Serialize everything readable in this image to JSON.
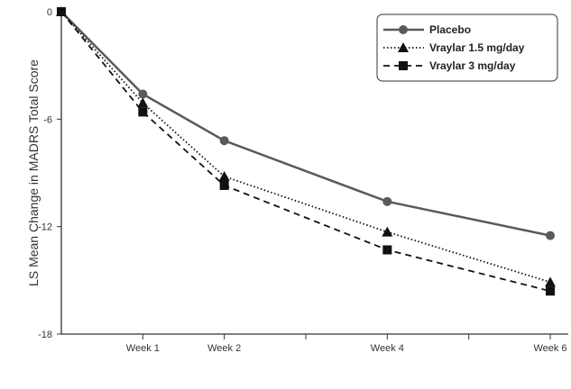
{
  "chart_data": {
    "type": "line",
    "title": "",
    "xlabel": "",
    "ylabel": "LS Mean Change in MADRS Total Score",
    "x": [
      0,
      1,
      2,
      4,
      6
    ],
    "xlim": [
      0,
      6
    ],
    "ylim": [
      -18,
      0
    ],
    "yticks": [
      0,
      -6,
      -12,
      -18
    ],
    "ytick_labels": [
      "0",
      "-6",
      "-12",
      "-18"
    ],
    "xticks": [
      1,
      2,
      3,
      4,
      5,
      6
    ],
    "xtick_labels": [
      {
        "x": 1,
        "label": "Week 1"
      },
      {
        "x": 2,
        "label": "Week 2"
      },
      {
        "x": 4,
        "label": "Week 4"
      },
      {
        "x": 6,
        "label": "Week 6"
      }
    ],
    "grid": false,
    "legend_position": "top-right",
    "series": [
      {
        "name": "Placebo",
        "values": [
          0,
          -4.6,
          -7.2,
          -10.6,
          -12.5
        ],
        "color": "#5a5a5a",
        "style": "solid",
        "marker": "circle"
      },
      {
        "name": "Vraylar 1.5 mg/day",
        "values": [
          0,
          -5.1,
          -9.2,
          -12.3,
          -15.1
        ],
        "color": "#111111",
        "style": "dotted",
        "marker": "triangle"
      },
      {
        "name": "Vraylar 3 mg/day",
        "values": [
          0,
          -5.6,
          -9.7,
          -13.3,
          -15.6
        ],
        "color": "#111111",
        "style": "dashed",
        "marker": "square"
      }
    ]
  }
}
